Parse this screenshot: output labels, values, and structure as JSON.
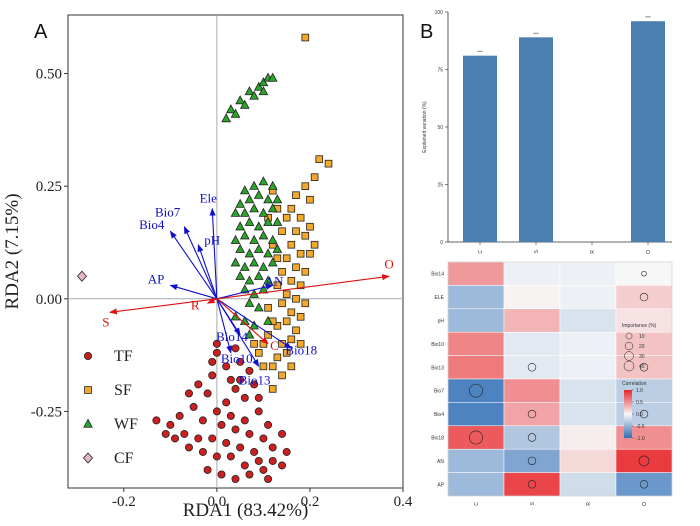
{
  "panelA": {
    "letter": "A",
    "chart_data": {
      "type": "scatter",
      "xlabel": "RDA1 (83.42%)",
      "ylabel": "RDA2 (7.15%)",
      "xlim": [
        -0.32,
        0.4
      ],
      "ylim": [
        -0.42,
        0.63
      ],
      "xticks": [
        -0.2,
        0.0,
        0.2,
        0.4
      ],
      "xtick_labels": [
        "-0.2",
        "0.0",
        "0.2",
        "0.4"
      ],
      "yticks": [
        -0.25,
        0.0,
        0.25,
        0.5
      ],
      "ytick_labels": [
        "-0.25",
        "0.00",
        "0.25",
        "0.50"
      ],
      "grid": false,
      "legend_position": "bottom-left",
      "series": [
        {
          "name": "TF",
          "marker": "circle",
          "color": "#cc1f1f",
          "points": [
            [
              0.0,
              -0.12
            ],
            [
              0.02,
              -0.15
            ],
            [
              -0.01,
              -0.17
            ],
            [
              0.03,
              -0.18
            ],
            [
              0.05,
              -0.14
            ],
            [
              0.04,
              -0.2
            ],
            [
              0.06,
              -0.22
            ],
            [
              0.08,
              -0.19
            ],
            [
              0.02,
              -0.23
            ],
            [
              -0.02,
              -0.21
            ],
            [
              0.0,
              -0.25
            ],
            [
              0.03,
              -0.26
            ],
            [
              0.06,
              -0.27
            ],
            [
              0.09,
              -0.25
            ],
            [
              0.11,
              -0.28
            ],
            [
              0.07,
              -0.3
            ],
            [
              0.04,
              -0.29
            ],
            [
              0.01,
              -0.28
            ],
            [
              -0.03,
              -0.27
            ],
            [
              -0.05,
              -0.24
            ],
            [
              -0.08,
              -0.26
            ],
            [
              -0.1,
              -0.28
            ],
            [
              -0.07,
              -0.3
            ],
            [
              -0.04,
              -0.31
            ],
            [
              -0.01,
              -0.31
            ],
            [
              0.02,
              -0.32
            ],
            [
              0.05,
              -0.33
            ],
            [
              0.08,
              -0.34
            ],
            [
              0.1,
              -0.31
            ],
            [
              0.12,
              -0.33
            ],
            [
              0.14,
              -0.3
            ],
            [
              0.09,
              -0.36
            ],
            [
              0.06,
              -0.37
            ],
            [
              0.03,
              -0.35
            ],
            [
              0.0,
              -0.35
            ],
            [
              -0.03,
              -0.34
            ],
            [
              -0.06,
              -0.33
            ],
            [
              -0.09,
              -0.31
            ],
            [
              -0.11,
              -0.3
            ],
            [
              -0.13,
              -0.27
            ],
            [
              0.1,
              -0.38
            ],
            [
              0.07,
              -0.39
            ],
            [
              0.04,
              -0.4
            ],
            [
              0.11,
              -0.4
            ],
            [
              0.14,
              -0.37
            ],
            [
              0.15,
              -0.34
            ],
            [
              0.12,
              -0.36
            ],
            [
              -0.02,
              -0.38
            ],
            [
              0.01,
              -0.39
            ],
            [
              0.05,
              -0.18
            ],
            [
              0.0,
              -0.1
            ],
            [
              -0.01,
              -0.14
            ],
            [
              0.04,
              -0.11
            ],
            [
              0.07,
              -0.16
            ],
            [
              0.09,
              -0.22
            ],
            [
              -0.04,
              -0.19
            ],
            [
              -0.06,
              -0.21
            ]
          ]
        },
        {
          "name": "SF",
          "marker": "square",
          "color": "#f2a92b",
          "points": [
            [
              0.19,
              0.58
            ],
            [
              0.22,
              0.31
            ],
            [
              0.24,
              0.3
            ],
            [
              0.21,
              0.27
            ],
            [
              0.19,
              0.25
            ],
            [
              0.17,
              0.23
            ],
            [
              0.2,
              0.22
            ],
            [
              0.16,
              0.2
            ],
            [
              0.18,
              0.18
            ],
            [
              0.15,
              0.18
            ],
            [
              0.17,
              0.15
            ],
            [
              0.14,
              0.15
            ],
            [
              0.19,
              0.14
            ],
            [
              0.16,
              0.12
            ],
            [
              0.18,
              0.1
            ],
            [
              0.2,
              0.1
            ],
            [
              0.15,
              0.09
            ],
            [
              0.17,
              0.07
            ],
            [
              0.19,
              0.06
            ],
            [
              0.14,
              0.06
            ],
            [
              0.16,
              0.04
            ],
            [
              0.18,
              0.03
            ],
            [
              0.13,
              0.03
            ],
            [
              0.15,
              0.01
            ],
            [
              0.17,
              0.0
            ],
            [
              0.19,
              -0.01
            ],
            [
              0.14,
              -0.01
            ],
            [
              0.16,
              -0.03
            ],
            [
              0.18,
              -0.04
            ],
            [
              0.15,
              -0.05
            ],
            [
              0.17,
              -0.07
            ],
            [
              0.13,
              -0.06
            ],
            [
              0.16,
              -0.09
            ],
            [
              0.14,
              -0.1
            ],
            [
              0.18,
              -0.1
            ],
            [
              0.15,
              -0.12
            ],
            [
              0.13,
              -0.13
            ],
            [
              0.16,
              -0.15
            ],
            [
              0.14,
              -0.17
            ],
            [
              0.12,
              -0.15
            ],
            [
              0.11,
              -0.08
            ],
            [
              0.1,
              -0.1
            ],
            [
              0.09,
              -0.12
            ],
            [
              0.12,
              -0.05
            ],
            [
              0.11,
              -0.02
            ],
            [
              0.13,
              0.09
            ],
            [
              0.12,
              0.12
            ],
            [
              0.11,
              0.18
            ],
            [
              0.13,
              0.2
            ],
            [
              0.12,
              0.24
            ],
            [
              0.2,
              0.16
            ],
            [
              0.21,
              0.12
            ],
            [
              0.1,
              -0.15
            ],
            [
              0.08,
              -0.1
            ],
            [
              0.12,
              -0.2
            ]
          ]
        },
        {
          "name": "WF",
          "marker": "triangle",
          "color": "#2aa52a",
          "points": [
            [
              0.02,
              0.4
            ],
            [
              0.03,
              0.42
            ],
            [
              0.04,
              0.41
            ],
            [
              0.05,
              0.44
            ],
            [
              0.06,
              0.43
            ],
            [
              0.07,
              0.46
            ],
            [
              0.08,
              0.45
            ],
            [
              0.09,
              0.47
            ],
            [
              0.1,
              0.48
            ],
            [
              0.11,
              0.49
            ],
            [
              0.1,
              0.46
            ],
            [
              0.12,
              0.49
            ],
            [
              0.06,
              0.24
            ],
            [
              0.08,
              0.25
            ],
            [
              0.1,
              0.26
            ],
            [
              0.12,
              0.25
            ],
            [
              0.05,
              0.21
            ],
            [
              0.07,
              0.22
            ],
            [
              0.09,
              0.23
            ],
            [
              0.11,
              0.22
            ],
            [
              0.13,
              0.22
            ],
            [
              0.04,
              0.19
            ],
            [
              0.06,
              0.19
            ],
            [
              0.08,
              0.2
            ],
            [
              0.1,
              0.19
            ],
            [
              0.12,
              0.2
            ],
            [
              0.05,
              0.16
            ],
            [
              0.07,
              0.17
            ],
            [
              0.09,
              0.16
            ],
            [
              0.11,
              0.17
            ],
            [
              0.13,
              0.17
            ],
            [
              0.04,
              0.13
            ],
            [
              0.06,
              0.14
            ],
            [
              0.08,
              0.13
            ],
            [
              0.1,
              0.14
            ],
            [
              0.12,
              0.13
            ],
            [
              0.05,
              0.11
            ],
            [
              0.07,
              0.1
            ],
            [
              0.09,
              0.11
            ],
            [
              0.11,
              0.1
            ],
            [
              0.13,
              0.11
            ],
            [
              0.04,
              0.08
            ],
            [
              0.06,
              0.07
            ],
            [
              0.08,
              0.08
            ],
            [
              0.1,
              0.07
            ],
            [
              0.12,
              0.08
            ],
            [
              0.05,
              0.05
            ],
            [
              0.07,
              0.04
            ],
            [
              0.09,
              0.05
            ],
            [
              0.11,
              0.04
            ],
            [
              0.06,
              0.02
            ],
            [
              0.08,
              0.01
            ],
            [
              0.1,
              0.02
            ],
            [
              0.07,
              -0.01
            ],
            [
              0.09,
              -0.02
            ],
            [
              0.04,
              -0.04
            ],
            [
              0.06,
              -0.05
            ],
            [
              0.08,
              -0.06
            ],
            [
              0.11,
              -0.05
            ],
            [
              0.07,
              -0.08
            ]
          ]
        },
        {
          "name": "CF",
          "marker": "diamond",
          "color": "#e8b4c8",
          "points": [
            [
              -0.29,
              0.05
            ]
          ]
        }
      ],
      "vectors": [
        {
          "label": "Ele",
          "x": -0.01,
          "y": 0.2,
          "color": "#1010cc"
        },
        {
          "label": "Bio7",
          "x": -0.07,
          "y": 0.16,
          "color": "#1010cc"
        },
        {
          "label": "Bio4",
          "x": -0.1,
          "y": 0.15,
          "color": "#1010cc"
        },
        {
          "label": "pH",
          "x": -0.04,
          "y": 0.12,
          "color": "#1010cc"
        },
        {
          "label": "AP",
          "x": -0.1,
          "y": 0.03,
          "color": "#1010cc"
        },
        {
          "label": "AN",
          "x": 0.12,
          "y": 0.03,
          "color": "#1010cc"
        },
        {
          "label": "Bio14",
          "x": 0.05,
          "y": -0.08,
          "color": "#1010cc"
        },
        {
          "label": "Bio18",
          "x": 0.16,
          "y": -0.11,
          "color": "#1010cc"
        },
        {
          "label": "Bio10",
          "x": 0.03,
          "y": -0.12,
          "color": "#1010cc"
        },
        {
          "label": "Bio13",
          "x": 0.09,
          "y": -0.15,
          "color": "#1010cc"
        },
        {
          "label": "O",
          "x": 0.37,
          "y": 0.05,
          "color": "#dd1111"
        },
        {
          "label": "S",
          "x": -0.23,
          "y": -0.03,
          "color": "#dd1111"
        },
        {
          "label": "R",
          "x": -0.02,
          "y": -0.01,
          "color": "#dd1111"
        },
        {
          "label": "C",
          "x": 0.11,
          "y": -0.1,
          "color": "#dd1111"
        }
      ]
    }
  },
  "panelB": {
    "letter": "B",
    "bars": {
      "chart_data": {
        "type": "bar",
        "categories": [
          "C",
          "S",
          "R",
          "O"
        ],
        "values": [
          81,
          89,
          0,
          96
        ],
        "significance": [
          "***",
          "***",
          "",
          "***"
        ],
        "ylabel": "Explained variation (%)",
        "ylim": [
          0,
          100
        ],
        "yticks": [
          0,
          25,
          50,
          75,
          100
        ],
        "color": "#4a7fb0"
      }
    },
    "heatmap": {
      "chart_data": {
        "type": "heatmap",
        "columns": [
          "C",
          "S",
          "R",
          "O"
        ],
        "rows": [
          "Bio14",
          "ELE",
          "pH",
          "Bio10",
          "Bio13",
          "Bio7",
          "Bio4",
          "Bio18",
          "AN",
          "AP"
        ],
        "correlation": [
          [
            0.45,
            -0.05,
            -0.05,
            0.0
          ],
          [
            -0.45,
            0.02,
            -0.05,
            0.2
          ],
          [
            -0.45,
            0.32,
            -0.15,
            0.1
          ],
          [
            0.55,
            -0.1,
            -0.05,
            0.25
          ],
          [
            0.6,
            -0.1,
            -0.05,
            0.25
          ],
          [
            -0.85,
            0.5,
            -0.15,
            -0.3
          ],
          [
            -0.85,
            0.4,
            -0.15,
            -0.3
          ],
          [
            0.75,
            -0.35,
            0.05,
            0.5
          ],
          [
            -0.45,
            -0.6,
            0.15,
            0.9
          ],
          [
            -0.45,
            0.85,
            -0.2,
            -0.7
          ]
        ],
        "importance": [
          [
            0,
            0,
            0,
            2
          ],
          [
            0,
            0,
            0,
            10
          ],
          [
            0,
            0,
            0,
            0
          ],
          [
            0,
            0,
            0,
            0
          ],
          [
            0,
            10,
            0,
            10
          ],
          [
            40,
            0,
            0,
            0
          ],
          [
            0,
            10,
            0,
            10
          ],
          [
            40,
            10,
            0,
            0
          ],
          [
            0,
            10,
            0,
            20
          ],
          [
            0,
            10,
            0,
            10
          ]
        ],
        "importance_legend": {
          "title": "Importance (%)",
          "values": [
            10,
            20,
            30,
            40
          ]
        },
        "color_legend": {
          "title": "Correlation",
          "ticks": [
            1.0,
            0.5,
            0.0,
            -0.5,
            -1.0
          ],
          "tick_labels": [
            "1.0",
            "0.5",
            "0.0",
            "-0.5",
            "-1.0"
          ]
        }
      }
    }
  }
}
